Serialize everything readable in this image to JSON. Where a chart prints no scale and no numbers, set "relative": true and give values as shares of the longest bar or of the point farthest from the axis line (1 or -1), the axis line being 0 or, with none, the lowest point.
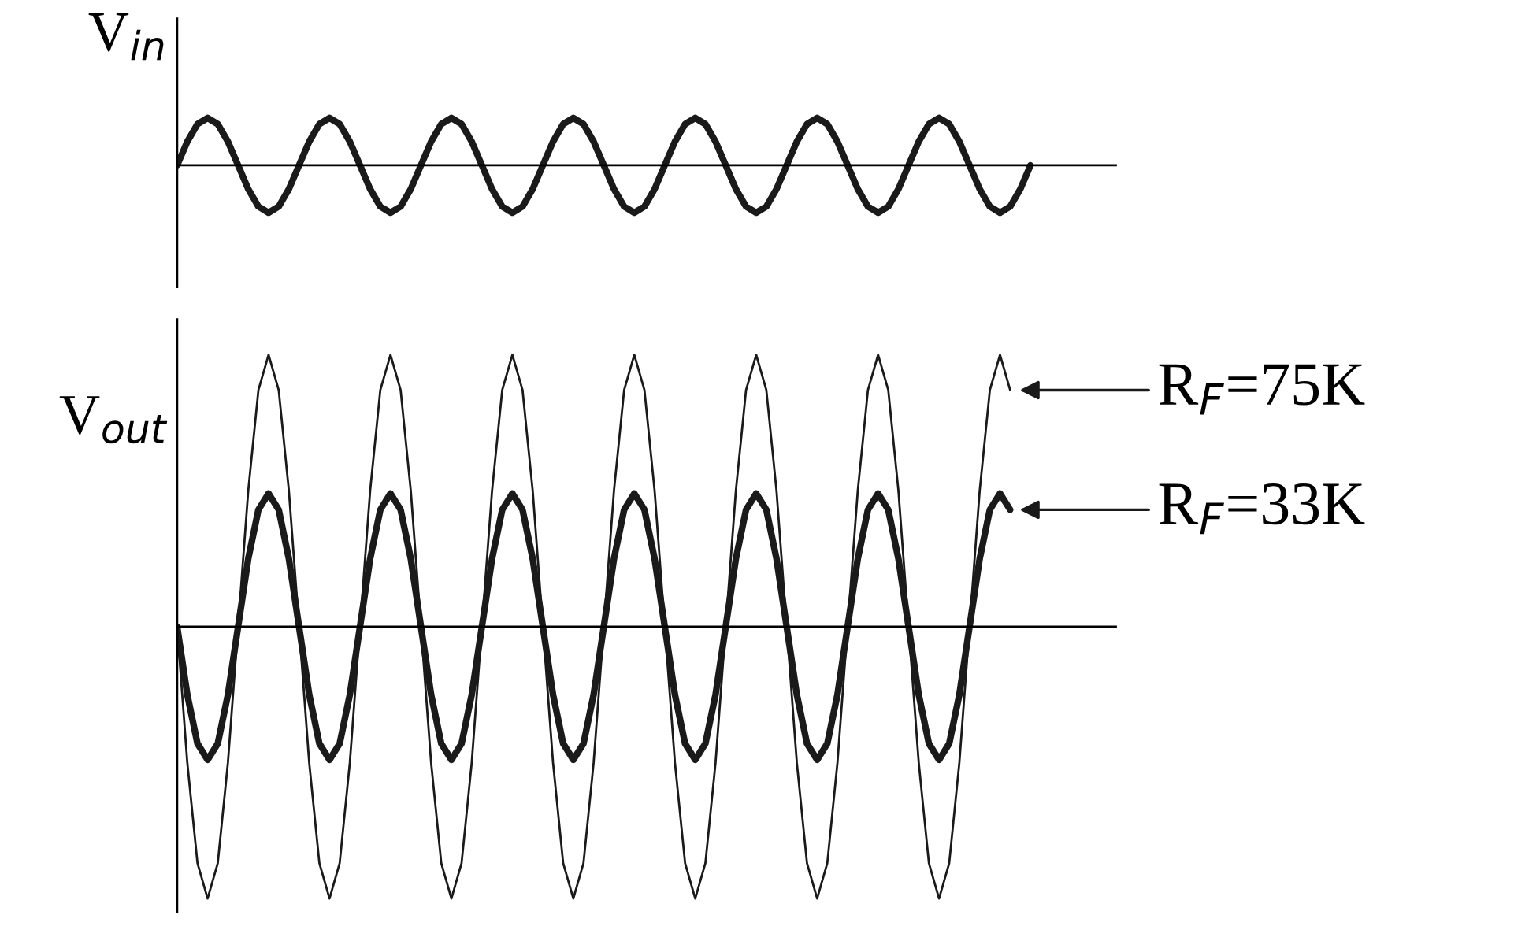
{
  "chart_data": [
    {
      "type": "line",
      "relative": true,
      "ylabel": "V$_{in}$",
      "categories": [
        null,
        null,
        null,
        null,
        null,
        null,
        null,
        null,
        null,
        null,
        null,
        null,
        null,
        null,
        null,
        null,
        null,
        null,
        null,
        null,
        null,
        null,
        null,
        null,
        null,
        null,
        null,
        null,
        null,
        null,
        null,
        null,
        null,
        null,
        null,
        null,
        null,
        null,
        null,
        null,
        null,
        null,
        null,
        null,
        null,
        null,
        null,
        null,
        null,
        null,
        null,
        null,
        null,
        null,
        null,
        null,
        null,
        null,
        null,
        null,
        null,
        null,
        null,
        null,
        null,
        null,
        null,
        null,
        null,
        null,
        null,
        null,
        null,
        null,
        null,
        null,
        null,
        null,
        null,
        null,
        null,
        null,
        null,
        null,
        null
      ],
      "series": [
        {
          "color": "#1a1a1a",
          "values": [
            0,
            0.5,
            0.87,
            1,
            0.87,
            0.5,
            0,
            -0.5,
            -0.87,
            -1,
            -0.87,
            -0.5,
            0,
            0.5,
            0.87,
            1,
            0.87,
            0.5,
            0,
            -0.5,
            -0.87,
            -1,
            -0.87,
            -0.5,
            0,
            0.5,
            0.87,
            1,
            0.87,
            0.5,
            0,
            -0.5,
            -0.87,
            -1,
            -0.87,
            -0.5,
            0,
            0.5,
            0.87,
            1,
            0.87,
            0.5,
            0,
            -0.5,
            -0.87,
            -1,
            -0.87,
            -0.5,
            0,
            0.5,
            0.87,
            1,
            0.87,
            0.5,
            0,
            -0.5,
            -0.87,
            -1,
            -0.87,
            -0.5,
            0,
            0.5,
            0.87,
            1,
            0.87,
            0.5,
            0,
            -0.5,
            -0.87,
            -1,
            -0.87,
            -0.5,
            0,
            0.5,
            0.87,
            1,
            0.87,
            0.5,
            0,
            -0.5,
            -0.87,
            -1,
            -0.87,
            -0.5,
            0
          ]
        }
      ]
    },
    {
      "type": "line",
      "relative": true,
      "ylabel": "V$_{out}$",
      "categories": [
        null,
        null,
        null,
        null,
        null,
        null,
        null,
        null,
        null,
        null,
        null,
        null,
        null,
        null,
        null,
        null,
        null,
        null,
        null,
        null,
        null,
        null,
        null,
        null,
        null,
        null,
        null,
        null,
        null,
        null,
        null,
        null,
        null,
        null,
        null,
        null,
        null,
        null,
        null,
        null,
        null,
        null,
        null,
        null,
        null,
        null,
        null,
        null,
        null,
        null,
        null,
        null,
        null,
        null,
        null,
        null,
        null,
        null,
        null,
        null,
        null,
        null,
        null,
        null,
        null,
        null,
        null,
        null,
        null,
        null,
        null,
        null,
        null,
        null,
        null,
        null,
        null,
        null,
        null,
        null,
        null,
        null,
        null,
        null,
        null
      ],
      "series": [
        {
          "color": "#1a1a1a",
          "values": [
            0,
            -0.5,
            -0.87,
            -1,
            -0.87,
            -0.5,
            0,
            0.5,
            0.87,
            1,
            0.87,
            0.5,
            0,
            -0.5,
            -0.87,
            -1,
            -0.87,
            -0.5,
            0,
            0.5,
            0.87,
            1,
            0.87,
            0.5,
            0,
            -0.5,
            -0.87,
            -1,
            -0.87,
            -0.5,
            0,
            0.5,
            0.87,
            1,
            0.87,
            0.5,
            0,
            -0.5,
            -0.87,
            -1,
            -0.87,
            -0.5,
            0,
            0.5,
            0.87,
            1,
            0.87,
            0.5,
            0,
            -0.5,
            -0.87,
            -1,
            -0.87,
            -0.5,
            0,
            0.5,
            0.87,
            1,
            0.87,
            0.5,
            0,
            -0.5,
            -0.87,
            -1,
            -0.87,
            -0.5,
            0,
            0.5,
            0.87,
            1,
            0.87,
            0.5,
            0,
            -0.5,
            -0.87,
            -1,
            -0.87,
            -0.5,
            0,
            0.5,
            0.87,
            1,
            0.87,
            null,
            null
          ]
        },
        {
          "color": "#1a1a1a",
          "values": [
            0,
            -0.25,
            -0.43,
            -0.49,
            -0.43,
            -0.25,
            0,
            0.25,
            0.43,
            0.49,
            0.43,
            0.25,
            0,
            -0.25,
            -0.43,
            -0.49,
            -0.43,
            -0.25,
            0,
            0.25,
            0.43,
            0.49,
            0.43,
            0.25,
            0,
            -0.25,
            -0.43,
            -0.49,
            -0.43,
            -0.25,
            0,
            0.25,
            0.43,
            0.49,
            0.43,
            0.25,
            0,
            -0.25,
            -0.43,
            -0.49,
            -0.43,
            -0.25,
            0,
            0.25,
            0.43,
            0.49,
            0.43,
            0.25,
            0,
            -0.25,
            -0.43,
            -0.49,
            -0.43,
            -0.25,
            0,
            0.25,
            0.43,
            0.49,
            0.43,
            0.25,
            0,
            -0.25,
            -0.43,
            -0.49,
            -0.43,
            -0.25,
            0,
            0.25,
            0.43,
            0.49,
            0.43,
            0.25,
            0,
            -0.25,
            -0.43,
            -0.49,
            -0.43,
            -0.25,
            0,
            0.25,
            0.43,
            0.49,
            0.43,
            null,
            null
          ]
        }
      ],
      "annotations": [
        "R$_{F}$=75K",
        "R$_{F}$=33K"
      ]
    }
  ]
}
